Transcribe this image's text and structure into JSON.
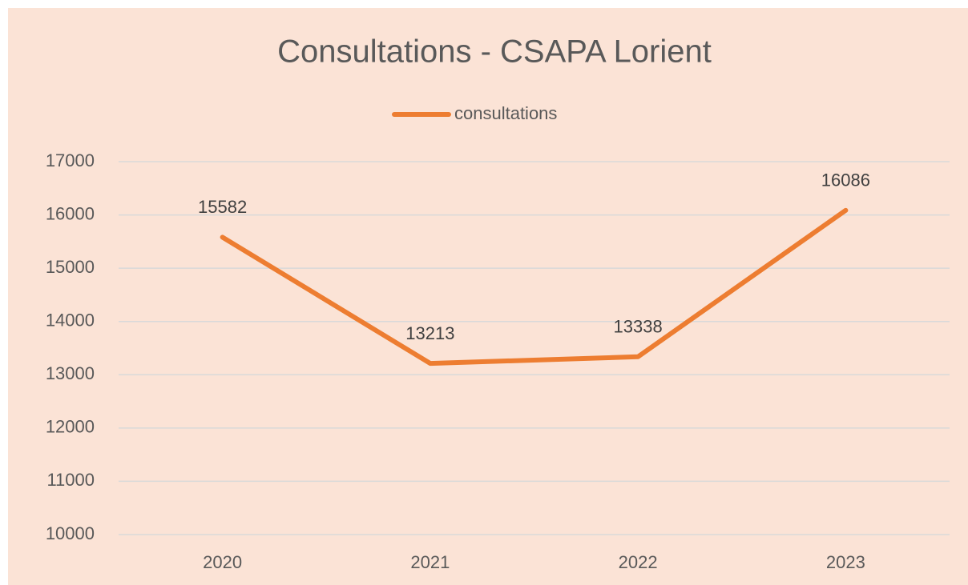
{
  "chart_data": {
    "type": "line",
    "title": "Consultations - CSAPA Lorient",
    "categories": [
      "2020",
      "2021",
      "2022",
      "2023"
    ],
    "series": [
      {
        "name": "consultations",
        "color": "#ed7d31",
        "values": [
          15582,
          13213,
          13338,
          16086
        ]
      }
    ],
    "ylim": [
      10000,
      17000
    ],
    "yticks": [
      10000,
      11000,
      12000,
      13000,
      14000,
      15000,
      16000,
      17000
    ],
    "grid": true,
    "legend": "top",
    "data_labels": true
  }
}
